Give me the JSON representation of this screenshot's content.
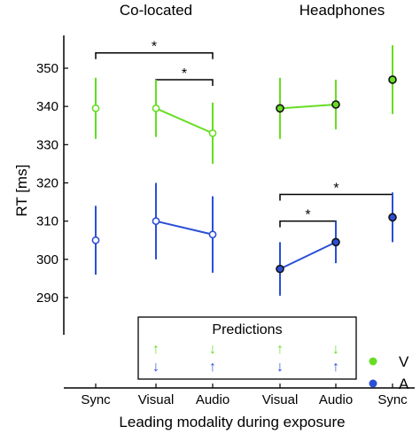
{
  "chart_data": {
    "type": "scatter",
    "ylabel": "RT [ms]",
    "xlabel": "Leading modality during exposure",
    "ylim": [
      281,
      357
    ],
    "yticks": [
      290,
      300,
      310,
      320,
      330,
      340,
      350
    ],
    "categories": [
      "Sync",
      "Visual",
      "Audio",
      "Visual",
      "Audio",
      "Sync"
    ],
    "panels": [
      {
        "title": "Co-located",
        "categories_index": [
          0,
          1,
          2
        ],
        "fill": "open"
      },
      {
        "title": "Headphones",
        "categories_index": [
          3,
          4,
          5
        ],
        "fill": "filled"
      }
    ],
    "series": [
      {
        "name": "V",
        "color": "#66dd22",
        "points": [
          {
            "x": "Sync",
            "y": 339.5,
            "lo": 331.5,
            "hi": 347.5,
            "panel": "Co-located"
          },
          {
            "x": "Visual",
            "y": 339.5,
            "lo": 332,
            "hi": 347,
            "panel": "Co-located"
          },
          {
            "x": "Audio",
            "y": 333,
            "lo": 325,
            "hi": 341,
            "panel": "Co-located"
          },
          {
            "x": "Visual",
            "y": 339.5,
            "lo": 331.5,
            "hi": 347.5,
            "panel": "Headphones"
          },
          {
            "x": "Audio",
            "y": 340.5,
            "lo": 334,
            "hi": 347,
            "panel": "Headphones"
          },
          {
            "x": "Sync",
            "y": 347,
            "lo": 338,
            "hi": 356,
            "panel": "Headphones"
          }
        ],
        "connect": [
          [
            1,
            2
          ],
          [
            3,
            4
          ]
        ]
      },
      {
        "name": "A",
        "color": "#2b4fd6",
        "points": [
          {
            "x": "Sync",
            "y": 305,
            "lo": 296,
            "hi": 314,
            "panel": "Co-located"
          },
          {
            "x": "Visual",
            "y": 310,
            "lo": 300,
            "hi": 320,
            "panel": "Co-located"
          },
          {
            "x": "Audio",
            "y": 306.5,
            "lo": 296.5,
            "hi": 316.5,
            "panel": "Co-located"
          },
          {
            "x": "Visual",
            "y": 297.5,
            "lo": 290.5,
            "hi": 304.5,
            "panel": "Headphones"
          },
          {
            "x": "Audio",
            "y": 304.5,
            "lo": 299,
            "hi": 310,
            "panel": "Headphones"
          },
          {
            "x": "Sync",
            "y": 311,
            "lo": 304.5,
            "hi": 317.5,
            "panel": "Headphones"
          }
        ],
        "connect": [
          [
            1,
            2
          ],
          [
            3,
            4
          ]
        ]
      }
    ],
    "significance": [
      {
        "from": 0,
        "to": 2,
        "y": 354,
        "label": "*"
      },
      {
        "from": 1,
        "to": 2,
        "y": 347,
        "label": "*"
      },
      {
        "from": 3,
        "to": 5,
        "y": 317,
        "label": "*"
      },
      {
        "from": 3,
        "to": 4,
        "y": 310,
        "label": "*"
      }
    ],
    "predictions": {
      "title": "Predictions",
      "columns": [
        {
          "v": "↑",
          "a": "↓"
        },
        {
          "v": "↓",
          "a": "↑"
        },
        {
          "v": "↑",
          "a": "↓"
        },
        {
          "v": "↓",
          "a": "↑"
        }
      ]
    },
    "legend": {
      "placement": "bottom-right",
      "entries": [
        {
          "label": "V",
          "color": "#66dd22"
        },
        {
          "label": "A",
          "color": "#2b4fd6"
        }
      ]
    }
  }
}
